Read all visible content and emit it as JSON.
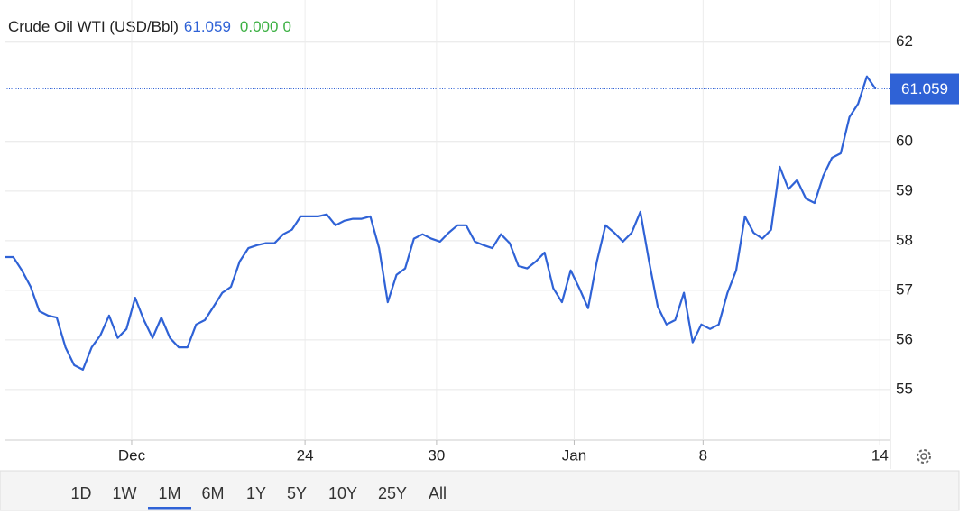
{
  "header": {
    "title": "Crude Oil WTI (USD/Bbl)",
    "change": "0.000",
    "change_percent": "0"
  },
  "chart_data": {
    "type": "line",
    "color": "#2f62d6",
    "last_value": 61.059,
    "x": [
      0,
      1,
      2,
      3,
      4,
      5,
      6,
      7,
      8,
      9,
      10,
      11,
      12,
      13,
      14,
      15,
      16,
      17,
      18,
      19,
      20,
      21,
      22,
      23,
      24,
      25,
      26,
      27,
      28,
      29,
      30,
      31,
      32,
      33,
      34,
      35,
      36,
      37,
      38,
      39,
      40,
      41,
      42,
      43,
      44,
      45,
      46,
      47,
      48,
      49,
      50,
      51,
      52,
      53,
      54,
      55,
      56,
      57,
      58,
      59,
      60,
      61,
      62,
      63,
      64,
      65,
      66,
      67,
      68,
      69,
      70,
      71,
      72,
      73,
      74,
      75,
      76,
      77,
      78,
      79,
      80,
      81,
      82,
      83,
      84,
      85,
      86,
      87,
      88,
      89,
      90,
      91,
      92,
      93,
      94,
      95,
      96,
      97,
      98,
      99,
      100
    ],
    "values": [
      57.67,
      57.67,
      57.4,
      57.07,
      56.58,
      56.49,
      56.45,
      55.85,
      55.49,
      55.4,
      55.85,
      56.09,
      56.49,
      56.04,
      56.22,
      56.85,
      56.4,
      56.04,
      56.45,
      56.04,
      55.85,
      55.85,
      56.31,
      56.4,
      56.67,
      56.95,
      57.07,
      57.58,
      57.85,
      57.91,
      57.95,
      57.95,
      58.13,
      58.22,
      58.49,
      58.49,
      58.49,
      58.53,
      58.31,
      58.4,
      58.44,
      58.44,
      58.49,
      57.85,
      56.76,
      57.31,
      57.44,
      58.04,
      58.13,
      58.04,
      57.98,
      58.16,
      58.31,
      58.31,
      57.98,
      57.91,
      57.85,
      58.13,
      57.95,
      57.49,
      57.44,
      57.58,
      57.76,
      57.04,
      56.76,
      57.4,
      57.04,
      56.64,
      57.58,
      58.31,
      58.16,
      57.98,
      58.16,
      58.58,
      57.58,
      56.67,
      56.31,
      56.4,
      56.95,
      55.95,
      56.31,
      56.22,
      56.31,
      56.95,
      57.4,
      58.49,
      58.16,
      58.04,
      58.22,
      59.49,
      59.04,
      59.22,
      58.85,
      58.76,
      59.31,
      59.67,
      59.76,
      60.49,
      60.76,
      61.31,
      61.059
    ],
    "xlim": [
      0,
      101.5
    ],
    "xticks": [
      {
        "value": 14.6,
        "label": "Dec"
      },
      {
        "value": 34.5,
        "label": "24"
      },
      {
        "value": 49.6,
        "label": "30"
      },
      {
        "value": 65.4,
        "label": "Jan"
      },
      {
        "value": 80.2,
        "label": "8"
      },
      {
        "value": 100.5,
        "label": "14"
      }
    ],
    "ylim": [
      53.98,
      62.85
    ],
    "yticks": [
      55,
      56,
      57,
      58,
      59,
      60,
      62
    ],
    "grid": true
  },
  "ranges": [
    "1D",
    "1W",
    "1M",
    "6M",
    "1Y",
    "5Y",
    "10Y",
    "25Y",
    "All"
  ],
  "active_range_index": 2
}
